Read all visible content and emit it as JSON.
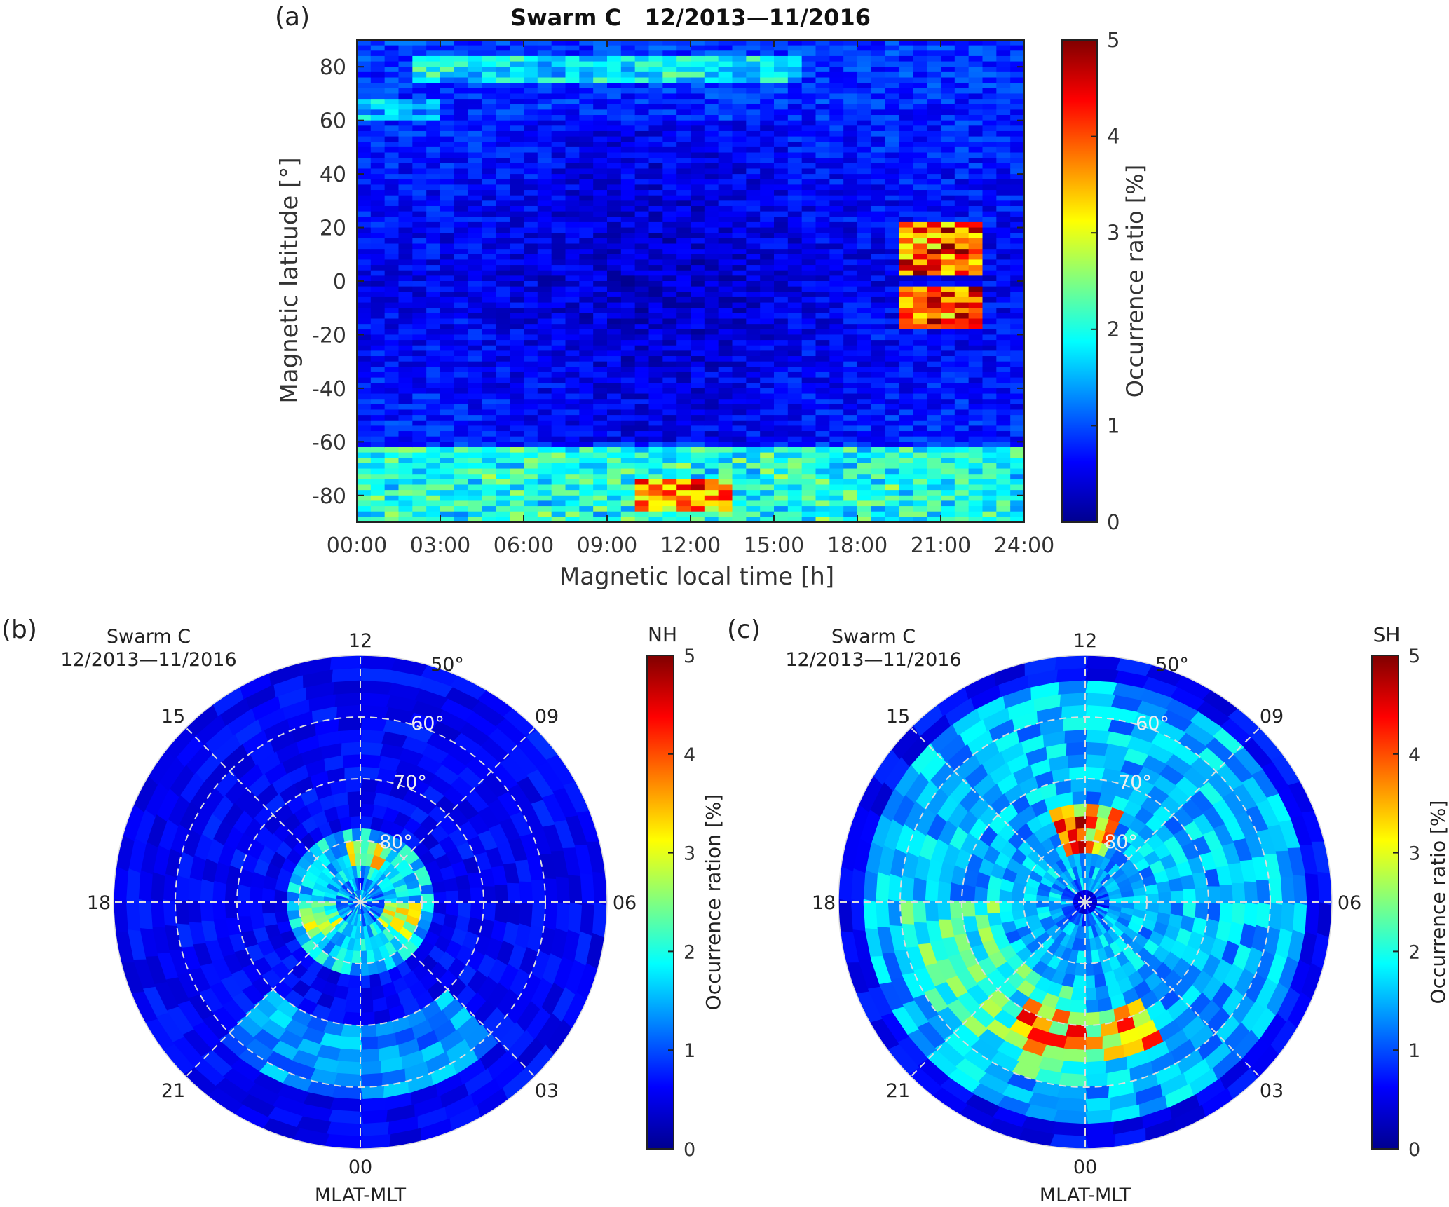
{
  "colormap": {
    "name": "jet",
    "stops": [
      "#00008f",
      "#0000ff",
      "#0080ff",
      "#00ffff",
      "#80ff80",
      "#ffff00",
      "#ff8000",
      "#ff0000",
      "#800000"
    ]
  },
  "chart_data": [
    {
      "panel_label": "(a)",
      "type": "heatmap",
      "title": "Swarm C   12/2013—11/2016",
      "xlabel": "Magnetic local time [h]",
      "ylabel": "Magnetic latitude [°]",
      "xlim": [
        0,
        24
      ],
      "ylim": [
        -90,
        90
      ],
      "xticks": [
        0,
        3,
        6,
        9,
        12,
        15,
        18,
        21,
        24
      ],
      "xticklabels": [
        "00:00",
        "03:00",
        "06:00",
        "09:00",
        "12:00",
        "15:00",
        "18:00",
        "21:00",
        "24:00"
      ],
      "yticks": [
        80,
        60,
        40,
        20,
        0,
        -20,
        -40,
        -60,
        -80
      ],
      "yticklabels": [
        "80",
        "60",
        "40",
        "20",
        "0",
        "-20",
        "-40",
        "-60",
        "-80"
      ],
      "colorbar": {
        "label": "Occurrence ratio [%]",
        "range": [
          0,
          5
        ],
        "ticks": [
          0,
          1,
          2,
          3,
          4,
          5
        ],
        "ticklabels": [
          "0",
          "1",
          "2",
          "3",
          "4",
          "5"
        ]
      },
      "grid": false,
      "features": [
        {
          "mlt": [
            19.3,
            22.6
          ],
          "mlat": [
            3,
            22
          ],
          "value": 5
        },
        {
          "mlt": [
            19.3,
            22.3
          ],
          "mlat": [
            -18,
            -3
          ],
          "value": 5
        },
        {
          "mlt": [
            10,
            13.5
          ],
          "mlat": [
            -85,
            -74
          ],
          "value": 4.5
        },
        {
          "mlt": [
            0,
            24
          ],
          "mlat": [
            -90,
            -62
          ],
          "value": 2.5
        },
        {
          "mlt": [
            2,
            16
          ],
          "mlat": [
            75,
            83
          ],
          "value": 2.2
        },
        {
          "mlt": [
            0,
            3
          ],
          "mlat": [
            60,
            68
          ],
          "value": 2.0
        }
      ]
    },
    {
      "panel_label": "(b)",
      "type": "heatmap",
      "projection": "polar",
      "hemisphere_label": "NH",
      "title_lines": [
        "Swarm C",
        "12/2013—11/2016"
      ],
      "xlabel": "MLAT-MLT",
      "mlt_labels": {
        "top": "12",
        "right": "06",
        "bottom": "00",
        "left": "18",
        "upper_left": "15",
        "upper_right": "09",
        "lower_left": "21",
        "lower_right": "03"
      },
      "mlat_labels": [
        "50°",
        "60°",
        "70°",
        "80°"
      ],
      "mlat_range": [
        50,
        90
      ],
      "colorbar": {
        "label": "Occurrence ration [%]",
        "range": [
          0,
          5
        ],
        "ticks": [
          0,
          1,
          2,
          3,
          4,
          5
        ],
        "ticklabels": [
          "0",
          "1",
          "2",
          "3",
          "4",
          "5"
        ]
      },
      "features": [
        {
          "mlt": [
            18,
            21
          ],
          "mlat": [
            80,
            86
          ],
          "value": 3.5
        },
        {
          "mlt": [
            3,
            6
          ],
          "mlat": [
            80,
            86
          ],
          "value": 3.5
        },
        {
          "mlt": [
            10,
            13
          ],
          "mlat": [
            80,
            84
          ],
          "value": 3.8
        },
        {
          "mlt": [
            0,
            24
          ],
          "mlat": [
            78,
            90
          ],
          "value": 2.2
        },
        {
          "mlt": [
            21,
            3
          ],
          "mlat": [
            58,
            70
          ],
          "value": 1.8
        }
      ]
    },
    {
      "panel_label": "(c)",
      "type": "heatmap",
      "projection": "polar",
      "hemisphere_label": "SH",
      "title_lines": [
        "Swarm C",
        "12/2013—11/2016"
      ],
      "xlabel": "MLAT-MLT",
      "mlt_labels": {
        "top": "12",
        "right": "06",
        "bottom": "00",
        "left": "18",
        "upper_left": "15",
        "upper_right": "09",
        "lower_left": "21",
        "lower_right": "03"
      },
      "mlat_labels": [
        "50°",
        "60°",
        "70°",
        "80°"
      ],
      "mlat_range": [
        50,
        90
      ],
      "colorbar": {
        "label": "Occurrence ratio [%]",
        "range": [
          0,
          5
        ],
        "ticks": [
          0,
          1,
          2,
          3,
          4,
          5
        ],
        "ticklabels": [
          "0",
          "1",
          "2",
          "3",
          "4",
          "5"
        ]
      },
      "features": [
        {
          "mlt": [
            10.5,
            13.5
          ],
          "mlat": [
            74,
            81
          ],
          "value": 5
        },
        {
          "mlt": [
            22,
            2
          ],
          "mlat": [
            65,
            72
          ],
          "value": 4.5
        },
        {
          "mlt": [
            18,
            24
          ],
          "mlat": [
            60,
            75
          ],
          "value": 2.8
        },
        {
          "mlt": [
            0,
            24
          ],
          "mlat": [
            55,
            88
          ],
          "value": 2.0
        }
      ]
    }
  ]
}
